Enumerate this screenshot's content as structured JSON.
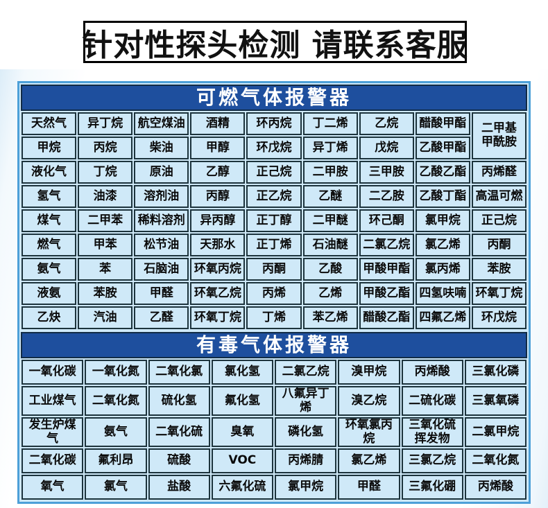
{
  "banner": {
    "text": "针对性探头检测 请联系客服"
  },
  "combustible": {
    "title": "可燃气体报警器",
    "rows": [
      [
        "天然气",
        "异丁烷",
        "航空煤油",
        "酒精",
        "环丙烷",
        "丁二烯",
        "乙烷",
        "醋酸甲酯",
        {
          "text": "二甲基\n甲酰胺",
          "rowspan": 2
        }
      ],
      [
        "甲烷",
        "丙烷",
        "柴油",
        "甲醇",
        "环戊烷",
        "异丁烯",
        "戊烷",
        "乙酸甲酯"
      ],
      [
        "液化气",
        "丁烷",
        "原油",
        "乙醇",
        "正己烷",
        "二甲胺",
        "三甲胺",
        "乙酸乙酯",
        "丙烯醛"
      ],
      [
        "氢气",
        "油漆",
        "溶剂油",
        "丙醇",
        "正乙烷",
        "乙醚",
        "二乙胺",
        "乙酸丁酯",
        "高温可燃"
      ],
      [
        "煤气",
        "二甲苯",
        "稀料溶剂",
        "异丙醇",
        "正丁醇",
        "二甲醚",
        "环己酮",
        "氯甲烷",
        "正己烷"
      ],
      [
        "燃气",
        "甲苯",
        "松节油",
        "天那水",
        "正丁烯",
        "石油醚",
        "二氯乙烷",
        "氯乙烯",
        "丙酮"
      ],
      [
        "氨气",
        "苯",
        "石脑油",
        "环氧丙烷",
        "丙酮",
        "乙酸",
        "甲酸甲酯",
        "氯丙烯",
        "苯胺"
      ],
      [
        "液氨",
        "苯胺",
        "甲醛",
        "环氧乙烷",
        "丙烯",
        "乙烯",
        "甲酸乙酯",
        "四氢呋喃",
        "环氧丁烷"
      ],
      [
        "乙炔",
        "汽油",
        "乙醛",
        "环氧丁烷",
        "丁烯",
        "苯乙烯",
        "醋酸乙酯",
        "四氟乙烯",
        "环戊烷"
      ]
    ]
  },
  "toxic": {
    "title": "有毒气体报警器",
    "rows": [
      [
        "一氧化碳",
        "一氧化氮",
        "二氧化氯",
        "氯化氢",
        "二氯乙烷",
        "溴甲烷",
        "丙烯酸",
        "三氯化磷"
      ],
      [
        "工业煤气",
        "二氧化氮",
        "硫化氢",
        "氟化氢",
        "八氟异丁烯",
        "溴乙烷",
        "二硫化碳",
        "三氯氧磷"
      ],
      [
        "发生炉煤气",
        "氨气",
        "二氧化硫",
        "臭氧",
        "磷化氢",
        "环氧氯丙烷",
        {
          "text": "三氧化硫\n挥发物",
          "small": true
        },
        "二氯甲烷"
      ],
      [
        "二氧化碳",
        "氟利昂",
        "硫酸",
        "VOC",
        "丙烯腈",
        "氯乙烯",
        "三氯乙烷",
        "二氧化氮"
      ],
      [
        "氧气",
        "氯气",
        "盐酸",
        "六氟化硫",
        "氯甲烷",
        "甲醛",
        "三氟化硼",
        "丙烯酸"
      ]
    ]
  },
  "colors": {
    "section_header_bg": "#1e4f9e",
    "cell_bg": "#cfe9f8",
    "cell_border": "#1c333c",
    "panel_border": "#4da0d8",
    "banner_border": "#000000",
    "banner_text": "#111111",
    "header_text": "#ffffff"
  }
}
